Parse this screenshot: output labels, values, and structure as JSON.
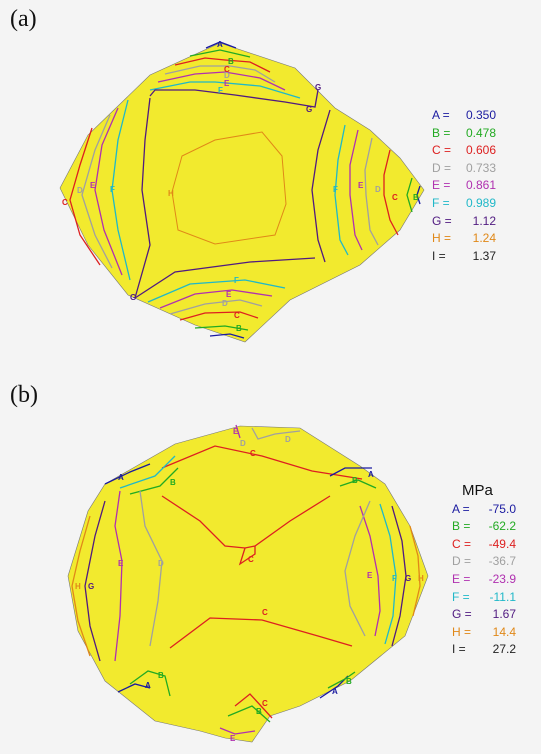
{
  "panels": [
    {
      "id": "a",
      "label": "(a)",
      "unit": "",
      "colors": {
        "fill": "#f2ea2e",
        "A": "#1a1aa0",
        "B": "#22aa22",
        "C": "#dd2020",
        "D": "#a0a0a0",
        "E": "#b030b0",
        "F": "#20b8c8",
        "G": "#501a80",
        "H": "#e08818",
        "I": "#222222"
      },
      "legend": [
        {
          "key": "A",
          "eq": "A =",
          "value": "0.350",
          "color": "#1a1aa0"
        },
        {
          "key": "B",
          "eq": "B =",
          "value": "0.478",
          "color": "#22aa22"
        },
        {
          "key": "C",
          "eq": "C =",
          "value": "0.606",
          "color": "#dd2020"
        },
        {
          "key": "D",
          "eq": "D =",
          "value": "0.733",
          "color": "#a0a0a0"
        },
        {
          "key": "E",
          "eq": "E =",
          "value": "0.861",
          "color": "#b030b0"
        },
        {
          "key": "F",
          "eq": "F =",
          "value": "0.989",
          "color": "#20b8c8"
        },
        {
          "key": "G",
          "eq": "G =",
          "value": "1.12",
          "color": "#501a80"
        },
        {
          "key": "H",
          "eq": "H =",
          "value": "1.24",
          "color": "#e08818"
        },
        {
          "key": "I",
          "eq": "I =",
          "value": "1.37",
          "color": "#222222"
        }
      ]
    },
    {
      "id": "b",
      "label": "(b)",
      "unit": "MPa",
      "colors": {
        "fill": "#f2ea2e",
        "A": "#1a1aa0",
        "B": "#22aa22",
        "C": "#dd2020",
        "D": "#a0a0a0",
        "E": "#b030b0",
        "F": "#20b8c8",
        "G": "#501a80",
        "H": "#e08818",
        "I": "#222222"
      },
      "legend": [
        {
          "key": "A",
          "eq": "A =",
          "value": "-75.0",
          "color": "#1a1aa0"
        },
        {
          "key": "B",
          "eq": "B =",
          "value": "-62.2",
          "color": "#22aa22"
        },
        {
          "key": "C",
          "eq": "C =",
          "value": "-49.4",
          "color": "#dd2020"
        },
        {
          "key": "D",
          "eq": "D =",
          "value": "-36.7",
          "color": "#a0a0a0"
        },
        {
          "key": "E",
          "eq": "E =",
          "value": "-23.9",
          "color": "#b030b0"
        },
        {
          "key": "F",
          "eq": "F =",
          "value": "-11.1",
          "color": "#20b8c8"
        },
        {
          "key": "G",
          "eq": "G =",
          "value": "1.67",
          "color": "#501a80"
        },
        {
          "key": "H",
          "eq": "H =",
          "value": "14.4",
          "color": "#e08818"
        },
        {
          "key": "I",
          "eq": "I =",
          "value": "27.2",
          "color": "#222222"
        }
      ]
    }
  ]
}
